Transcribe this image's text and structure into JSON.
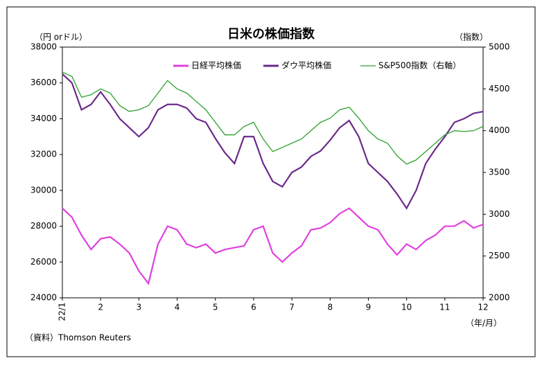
{
  "chart_data": {
    "type": "line",
    "title": "日米の株価指数",
    "y_label": "（円 orドル）",
    "y2_label": "（指数）",
    "x_label": "（年/月）",
    "source": "（資料）Thomson Reuters",
    "categories": [
      "22/1",
      null,
      null,
      null,
      "2",
      null,
      null,
      null,
      "3",
      null,
      null,
      null,
      "4",
      null,
      null,
      null,
      "5",
      null,
      null,
      null,
      "6",
      null,
      null,
      null,
      "7",
      null,
      null,
      null,
      "8",
      null,
      null,
      null,
      "9",
      null,
      null,
      null,
      "10",
      null,
      null,
      null,
      "11",
      null,
      null,
      null,
      "12"
    ],
    "series": [
      {
        "name": "日経平均株価",
        "color": "#e040e0",
        "values": [
          29000,
          28500,
          27500,
          26700,
          27300,
          27400,
          27000,
          26500,
          25500,
          24800,
          27000,
          28000,
          27800,
          27000,
          26800,
          27000,
          26500,
          26700,
          26800,
          26900,
          27800,
          28000,
          26500,
          26000,
          26500,
          26900,
          27800,
          27900,
          28200,
          28700,
          29000,
          28500,
          28000,
          27800,
          27000,
          26400,
          27000,
          26700,
          27200,
          27500,
          28000,
          28000,
          28300,
          27900,
          28100
        ]
      },
      {
        "name": "ダウ平均株価",
        "color": "#6a2a8a",
        "values": [
          36500,
          36000,
          34500,
          34800,
          35500,
          34800,
          34000,
          33500,
          33000,
          33500,
          34500,
          34800,
          34800,
          34600,
          34000,
          33800,
          32900,
          32100,
          31500,
          33000,
          33000,
          31500,
          30500,
          30200,
          31000,
          31300,
          31900,
          32200,
          32800,
          33500,
          33900,
          33000,
          31500,
          31000,
          30500,
          29800,
          29000,
          30000,
          31500,
          32300,
          33000,
          33800,
          34000,
          34300,
          34400
        ]
      },
      {
        "name": "S&P500指数（右軸）",
        "color": "#2ca02c",
        "axis": "y2",
        "values": [
          4700,
          4650,
          4400,
          4430,
          4500,
          4450,
          4300,
          4230,
          4250,
          4300,
          4450,
          4600,
          4500,
          4450,
          4350,
          4250,
          4100,
          3950,
          3950,
          4050,
          4100,
          3900,
          3750,
          3800,
          3850,
          3900,
          4000,
          4100,
          4150,
          4250,
          4280,
          4150,
          4000,
          3900,
          3850,
          3700,
          3600,
          3650,
          3750,
          3850,
          3950,
          4000,
          3990,
          4000,
          4050
        ]
      }
    ],
    "ylim": [
      24000,
      38000
    ],
    "yticks": [
      24000,
      26000,
      28000,
      30000,
      32000,
      34000,
      36000,
      38000
    ],
    "y2lim": [
      2000,
      5000
    ],
    "y2ticks": [
      2000,
      2500,
      3000,
      3500,
      4000,
      4500,
      5000
    ]
  }
}
